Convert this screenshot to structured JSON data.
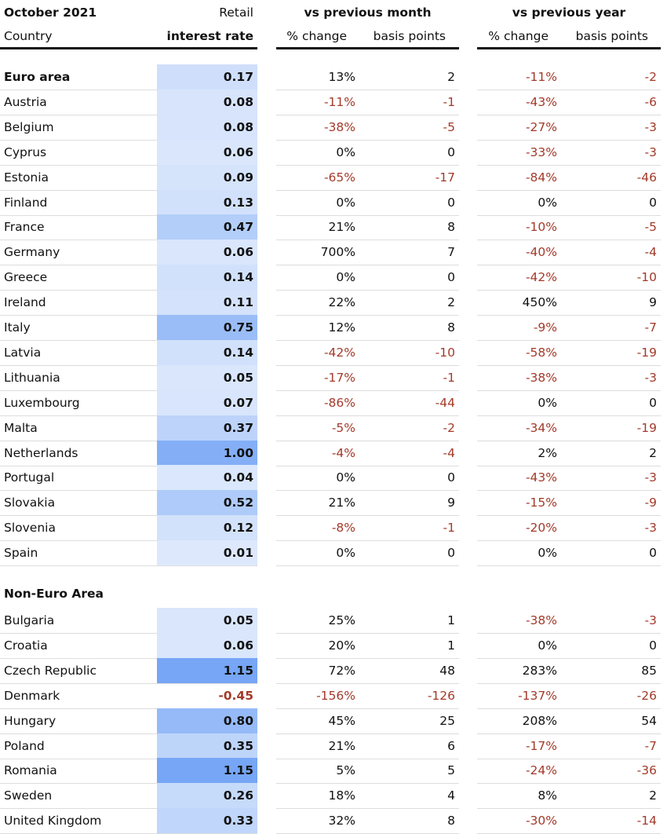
{
  "header": {
    "title": "October 2021",
    "rate_top": "Retail",
    "month": "vs previous month",
    "year": "vs previous year",
    "country": "Country",
    "rate": "interest rate",
    "month_pct": "% change",
    "month_bp": "basis points",
    "year_pct": "% change",
    "year_bp": "basis points"
  },
  "sections": [
    {
      "total": [
        "Euro area",
        "0.17",
        "13%",
        "2",
        "-11%",
        "-2"
      ],
      "rows": [
        [
          "Austria",
          "0.08",
          "-11%",
          "-1",
          "-43%",
          "-6"
        ],
        [
          "Belgium",
          "0.08",
          "-38%",
          "-5",
          "-27%",
          "-3"
        ],
        [
          "Cyprus",
          "0.06",
          "0%",
          "0",
          "-33%",
          "-3"
        ],
        [
          "Estonia",
          "0.09",
          "-65%",
          "-17",
          "-84%",
          "-46"
        ],
        [
          "Finland",
          "0.13",
          "0%",
          "0",
          "0%",
          "0"
        ],
        [
          "France",
          "0.47",
          "21%",
          "8",
          "-10%",
          "-5"
        ],
        [
          "Germany",
          "0.06",
          "700%",
          "7",
          "-40%",
          "-4"
        ],
        [
          "Greece",
          "0.14",
          "0%",
          "0",
          "-42%",
          "-10"
        ],
        [
          "Ireland",
          "0.11",
          "22%",
          "2",
          "450%",
          "9"
        ],
        [
          "Italy",
          "0.75",
          "12%",
          "8",
          "-9%",
          "-7"
        ],
        [
          "Latvia",
          "0.14",
          "-42%",
          "-10",
          "-58%",
          "-19"
        ],
        [
          "Lithuania",
          "0.05",
          "-17%",
          "-1",
          "-38%",
          "-3"
        ],
        [
          "Luxembourg",
          "0.07",
          "-86%",
          "-44",
          "0%",
          "0"
        ],
        [
          "Malta",
          "0.37",
          "-5%",
          "-2",
          "-34%",
          "-19"
        ],
        [
          "Netherlands",
          "1.00",
          "-4%",
          "-4",
          "2%",
          "2"
        ],
        [
          "Portugal",
          "0.04",
          "0%",
          "0",
          "-43%",
          "-3"
        ],
        [
          "Slovakia",
          "0.52",
          "21%",
          "9",
          "-15%",
          "-9"
        ],
        [
          "Slovenia",
          "0.12",
          "-8%",
          "-1",
          "-20%",
          "-3"
        ],
        [
          "Spain",
          "0.01",
          "0%",
          "0",
          "0%",
          "0"
        ]
      ]
    },
    {
      "title": "Non-Euro Area",
      "rows": [
        [
          "Bulgaria",
          "0.05",
          "25%",
          "1",
          "-38%",
          "-3"
        ],
        [
          "Croatia",
          "0.06",
          "20%",
          "1",
          "0%",
          "0"
        ],
        [
          "Czech Republic",
          "1.15",
          "72%",
          "48",
          "283%",
          "85"
        ],
        [
          "Denmark",
          "-0.45",
          "-156%",
          "-126",
          "-137%",
          "-26"
        ],
        [
          "Hungary",
          "0.80",
          "45%",
          "25",
          "208%",
          "54"
        ],
        [
          "Poland",
          "0.35",
          "21%",
          "6",
          "-17%",
          "-7"
        ],
        [
          "Romania",
          "1.15",
          "5%",
          "5",
          "-24%",
          "-36"
        ],
        [
          "Sweden",
          "0.26",
          "18%",
          "4",
          "8%",
          "2"
        ],
        [
          "United Kingdom",
          "0.33",
          "32%",
          "8",
          "-30%",
          "-14"
        ]
      ]
    }
  ]
}
